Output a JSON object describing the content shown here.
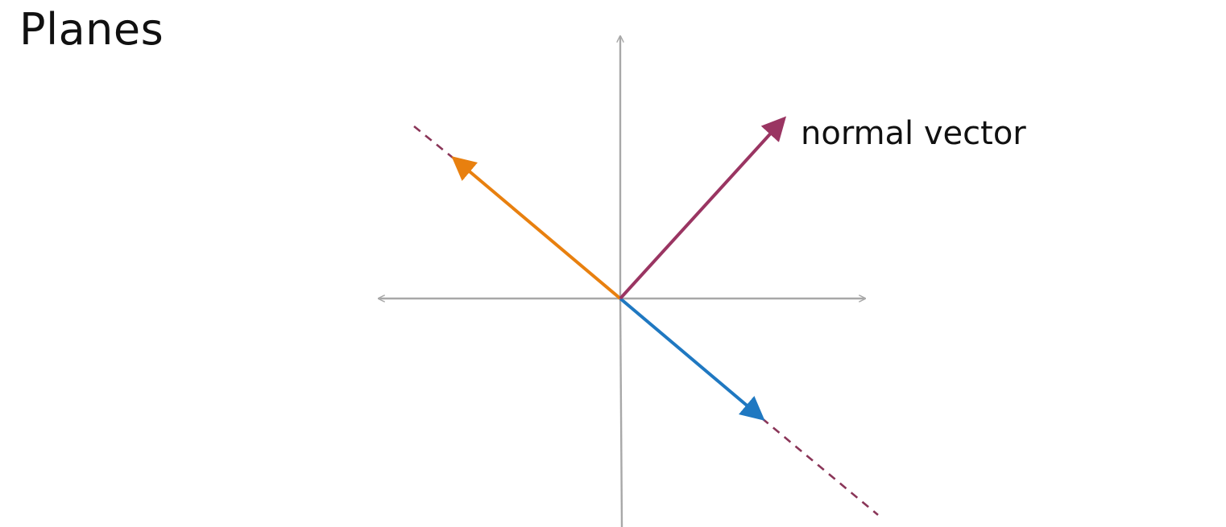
{
  "title": "Planes",
  "diagram": {
    "normal_vector_label": "normal vector",
    "colors": {
      "axis": "#a8a8a8",
      "normal_vector": "#9a3562",
      "plane_line_dashed": "#8a3558",
      "left_vector": "#e8800f",
      "right_vector": "#1f78c1"
    }
  }
}
